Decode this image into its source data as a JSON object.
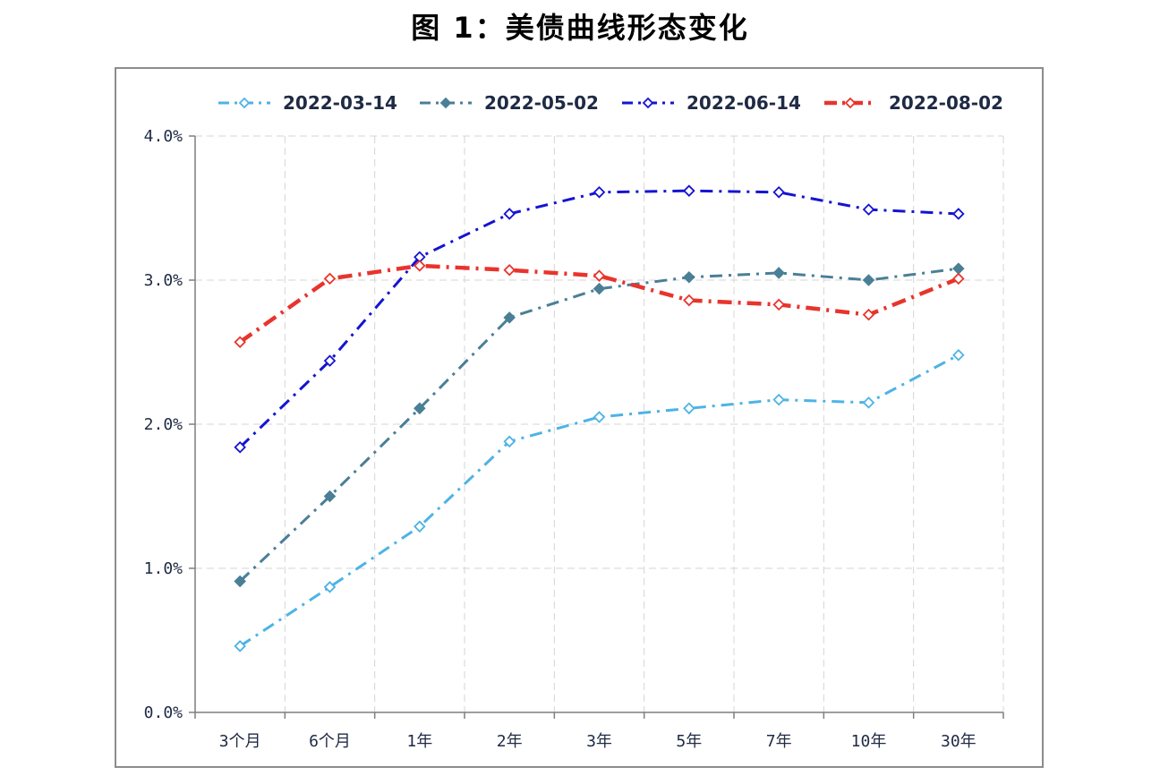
{
  "title": "图 1：美债曲线形态变化",
  "chart_data": {
    "type": "line",
    "title": "图 1：美债曲线形态变化",
    "xlabel": "",
    "ylabel": "",
    "categories": [
      "3个月",
      "6个月",
      "1年",
      "2年",
      "3年",
      "5年",
      "7年",
      "10年",
      "30年"
    ],
    "y_ticks": [
      "0.0%",
      "1.0%",
      "2.0%",
      "3.0%",
      "4.0%"
    ],
    "ylim": [
      0,
      4
    ],
    "grid": true,
    "legend_position": "top",
    "series": [
      {
        "name": "2022-03-14",
        "color": "#4db3e6",
        "dash": "dashdot",
        "marker": "diamond-open",
        "values": [
          0.46,
          0.87,
          1.29,
          1.88,
          2.05,
          2.11,
          2.17,
          2.15,
          2.48
        ]
      },
      {
        "name": "2022-05-02",
        "color": "#4a7f96",
        "dash": "dashdot",
        "marker": "diamond-filled",
        "values": [
          0.91,
          1.5,
          2.11,
          2.74,
          2.94,
          3.02,
          3.05,
          3.0,
          3.08
        ]
      },
      {
        "name": "2022-06-14",
        "color": "#1414d2",
        "dash": "dashdot",
        "marker": "diamond-open",
        "values": [
          1.84,
          2.44,
          3.16,
          3.46,
          3.61,
          3.62,
          3.61,
          3.49,
          3.46
        ]
      },
      {
        "name": "2022-08-02",
        "color": "#e8342c",
        "dash": "dashdot-bold",
        "marker": "diamond-open",
        "values": [
          2.57,
          3.01,
          3.1,
          3.07,
          3.03,
          2.86,
          2.83,
          2.76,
          3.01
        ]
      }
    ]
  }
}
